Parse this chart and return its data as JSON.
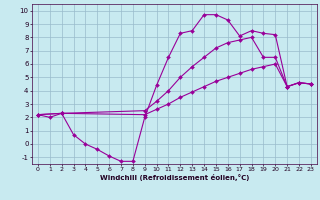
{
  "xlabel": "Windchill (Refroidissement éolien,°C)",
  "xlim": [
    -0.5,
    23.5
  ],
  "ylim": [
    -1.5,
    10.5
  ],
  "xticks": [
    0,
    1,
    2,
    3,
    4,
    5,
    6,
    7,
    8,
    9,
    10,
    11,
    12,
    13,
    14,
    15,
    16,
    17,
    18,
    19,
    20,
    21,
    22,
    23
  ],
  "yticks": [
    -1,
    0,
    1,
    2,
    3,
    4,
    5,
    6,
    7,
    8,
    9,
    10
  ],
  "bg_color": "#c8eaf0",
  "line_color": "#990099",
  "grid_color": "#99bbcc",
  "lines": [
    {
      "x": [
        0,
        1,
        2,
        3,
        4,
        5,
        6,
        7,
        8,
        9,
        10,
        11,
        12,
        13,
        14,
        15,
        16,
        17,
        18,
        19,
        20,
        21,
        22,
        23
      ],
      "y": [
        2.2,
        2.0,
        2.3,
        0.7,
        0.0,
        -0.4,
        -0.9,
        -1.3,
        -1.3,
        2.0,
        4.4,
        6.5,
        8.3,
        8.5,
        9.7,
        9.7,
        9.3,
        8.1,
        8.5,
        8.3,
        8.2,
        4.3,
        4.6,
        4.5
      ]
    },
    {
      "x": [
        0,
        2,
        9,
        10,
        11,
        12,
        13,
        14,
        15,
        16,
        17,
        18,
        19,
        20,
        21,
        22,
        23
      ],
      "y": [
        2.2,
        2.3,
        2.5,
        3.2,
        4.0,
        5.0,
        5.8,
        6.5,
        7.2,
        7.6,
        7.8,
        8.0,
        6.5,
        6.5,
        4.3,
        4.6,
        4.5
      ]
    },
    {
      "x": [
        0,
        2,
        9,
        10,
        11,
        12,
        13,
        14,
        15,
        16,
        17,
        18,
        19,
        20,
        21,
        22,
        23
      ],
      "y": [
        2.2,
        2.3,
        2.2,
        2.6,
        3.0,
        3.5,
        3.9,
        4.3,
        4.7,
        5.0,
        5.3,
        5.6,
        5.8,
        6.0,
        4.3,
        4.6,
        4.5
      ]
    }
  ]
}
